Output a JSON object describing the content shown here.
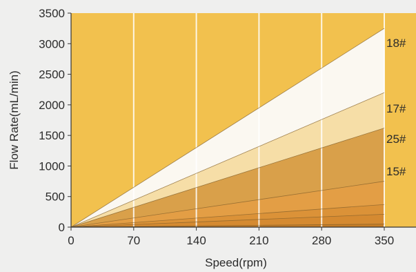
{
  "chart_data": {
    "type": "area",
    "xlabel": "Speed(rpm)",
    "ylabel": "Flow Rate(mL/min)",
    "xlim": [
      0,
      350
    ],
    "ylim": [
      0,
      3500
    ],
    "x_ticks": [
      0,
      70,
      140,
      210,
      280,
      350
    ],
    "y_ticks": [
      0,
      500,
      1000,
      1500,
      2000,
      2500,
      3000,
      3500
    ],
    "grid": "vertical",
    "background_color": "#f2c14e",
    "x": [
      0,
      350
    ],
    "series": [
      {
        "name": "18#",
        "values": [
          0,
          3250
        ],
        "color": "#fbf8f1"
      },
      {
        "name": "17#",
        "values": [
          0,
          2200
        ],
        "color": "#f6dea7"
      },
      {
        "name": "25#",
        "values": [
          0,
          1620
        ],
        "color": "#d9a04a"
      },
      {
        "name": "15#",
        "values": [
          0,
          750
        ],
        "color": "#e39e45"
      },
      {
        "values": [
          0,
          370
        ],
        "color": "#db9238"
      },
      {
        "values": [
          0,
          210
        ],
        "color": "#d58a31"
      },
      {
        "values": [
          0,
          50
        ],
        "color": "#c67d26"
      }
    ]
  }
}
